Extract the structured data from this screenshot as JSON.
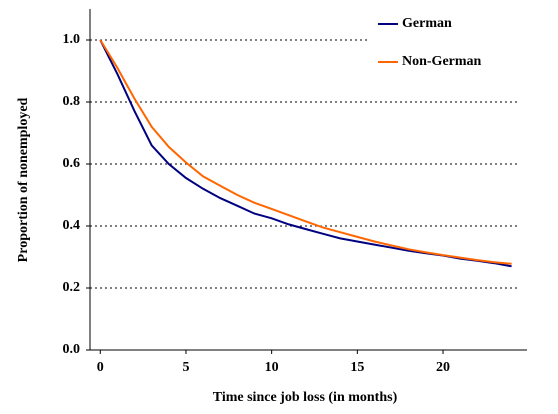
{
  "chart_data": {
    "type": "line",
    "x_label": "Time since job loss (in months)",
    "y_label": "Proportion of nonemployed",
    "x": [
      0,
      1,
      2,
      3,
      4,
      5,
      6,
      7,
      8,
      9,
      10,
      11,
      12,
      13,
      14,
      15,
      16,
      17,
      18,
      19,
      20,
      21,
      22,
      23,
      24
    ],
    "series": [
      {
        "name": "German",
        "color": "#000080",
        "values": [
          1.0,
          0.89,
          0.77,
          0.66,
          0.6,
          0.555,
          0.52,
          0.49,
          0.465,
          0.44,
          0.425,
          0.405,
          0.39,
          0.375,
          0.36,
          0.35,
          0.34,
          0.33,
          0.32,
          0.312,
          0.305,
          0.295,
          0.288,
          0.28,
          0.27
        ]
      },
      {
        "name": "Non-German",
        "color": "#ff6600",
        "values": [
          1.0,
          0.91,
          0.81,
          0.72,
          0.655,
          0.605,
          0.56,
          0.53,
          0.5,
          0.475,
          0.455,
          0.435,
          0.415,
          0.395,
          0.38,
          0.365,
          0.35,
          0.337,
          0.325,
          0.315,
          0.306,
          0.298,
          0.29,
          0.283,
          0.278
        ]
      }
    ],
    "xlim": [
      -0.6,
      24.9
    ],
    "xticks": [
      0,
      5,
      10,
      15,
      20
    ],
    "ylim": [
      0,
      1.1
    ],
    "yticks": [
      {
        "value": 0,
        "label": "0.0"
      },
      0.2,
      0.4,
      0.6,
      0.8,
      {
        "value": 1,
        "label": "1.0"
      }
    ],
    "grid": true,
    "legend": "top-right"
  }
}
